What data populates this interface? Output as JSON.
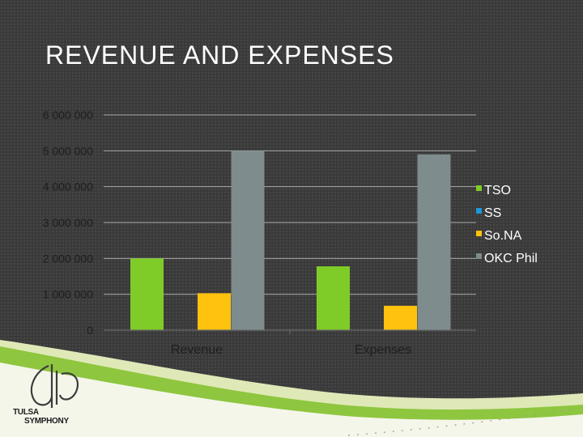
{
  "slide": {
    "title": "REVENUE AND EXPENSES"
  },
  "logo": {
    "line1": "TULSA",
    "line2": "SYMPHONY"
  },
  "colors": {
    "background": "#3a3a3a",
    "gridline": "#a8a8a8",
    "text": "#ffffff",
    "axis_text": "#1e1e1e",
    "swoosh_green": "#8ec63f",
    "swoosh_light": "#dfe9b8"
  },
  "chart_data": {
    "type": "bar",
    "categories": [
      "Revenue",
      "Expenses"
    ],
    "series": [
      {
        "name": "TSO",
        "color": "#7fcc28",
        "values": [
          2000000,
          1780000
        ]
      },
      {
        "name": "SS",
        "color": "#1d97d6",
        "values": [
          0,
          0
        ]
      },
      {
        "name": "So.NA",
        "color": "#ffc20e",
        "values": [
          1030000,
          680000
        ]
      },
      {
        "name": "OKC Phil",
        "color": "#7f8c8d",
        "values": [
          5000000,
          4900000
        ]
      }
    ],
    "ylim": [
      0,
      6000000
    ],
    "yticks": [
      0,
      1000000,
      2000000,
      3000000,
      4000000,
      5000000,
      6000000
    ],
    "ytick_labels": [
      "0",
      "1 000 000",
      "2 000 000",
      "3 000 000",
      "4 000 000",
      "5 000 000",
      "6 000 000"
    ],
    "xlabel": "",
    "ylabel": "",
    "grid": true,
    "legend_position": "right"
  }
}
